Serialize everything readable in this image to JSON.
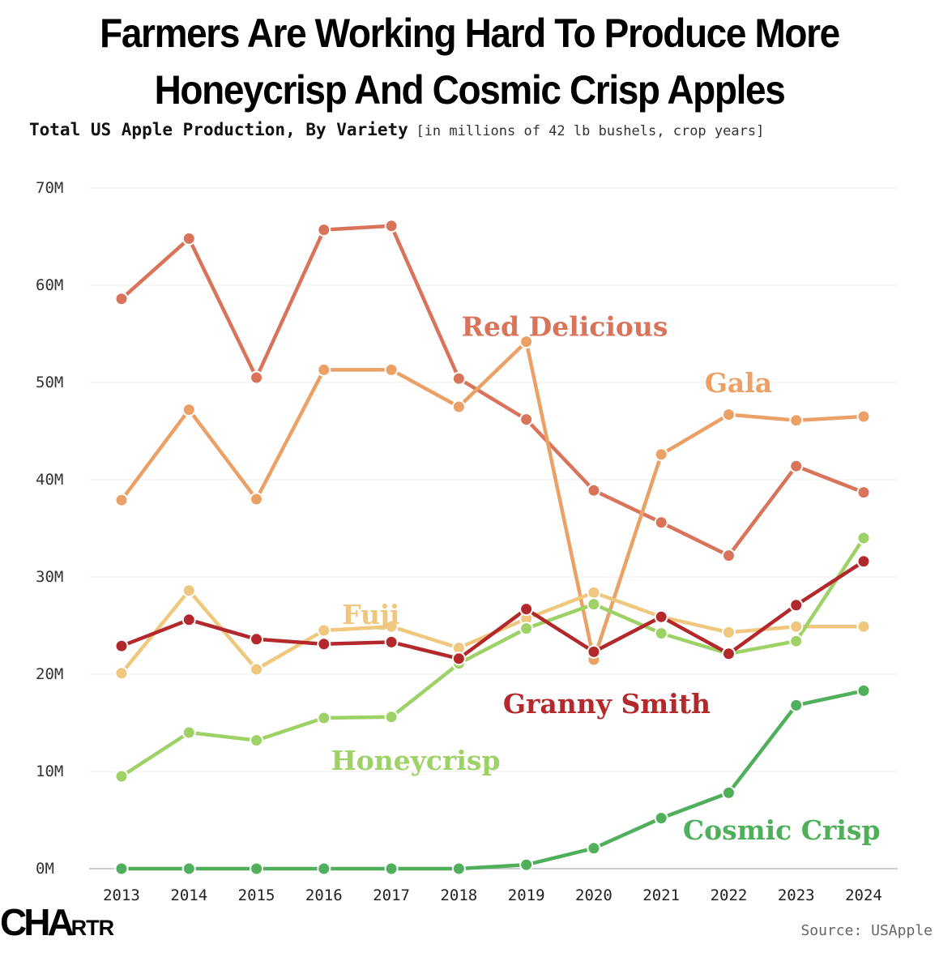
{
  "header": {
    "title_line1": "Farmers Are Working Hard To Produce More",
    "title_line2": "Honeycrisp And Cosmic Crisp Apples",
    "subtitle": "Total US Apple Production, By Variety",
    "unit_note": "[in millions of 42 lb bushels, crop years]"
  },
  "footer": {
    "logo_main": "CHA",
    "logo_suffix": "RTR",
    "source": "Source: USApple"
  },
  "chart_data": {
    "type": "line",
    "title": "Total US Apple Production, By Variety",
    "xlabel": "",
    "ylabel": "",
    "ylim": [
      0,
      70
    ],
    "grid": true,
    "legend": "direct labels",
    "y_ticks": [
      0,
      10,
      20,
      30,
      40,
      50,
      60,
      70
    ],
    "y_tick_labels": [
      "0M",
      "10M",
      "20M",
      "30M",
      "40M",
      "50M",
      "60M",
      "70M"
    ],
    "x": [
      "2013",
      "2014",
      "2015",
      "2016",
      "2017",
      "2018",
      "2019",
      "2020",
      "2021",
      "2022",
      "2023",
      "2024"
    ],
    "series": [
      {
        "name": "Red Delicious",
        "label": "Red Delicious",
        "color": "#D9735A",
        "values": [
          58.6,
          64.8,
          50.5,
          65.7,
          66.1,
          50.4,
          46.2,
          38.9,
          35.6,
          32.2,
          41.4,
          38.7
        ]
      },
      {
        "name": "Gala",
        "label": "Gala",
        "color": "#EBA166",
        "values": [
          37.9,
          47.2,
          38.0,
          51.3,
          51.3,
          47.5,
          54.2,
          21.5,
          42.6,
          46.7,
          46.1,
          46.5
        ]
      },
      {
        "name": "Fuji",
        "label": "Fuji",
        "color": "#EFC77E",
        "values": [
          20.1,
          28.6,
          20.5,
          24.5,
          24.9,
          22.7,
          25.7,
          28.4,
          25.9,
          24.3,
          24.9,
          24.9
        ]
      },
      {
        "name": "Honeycrisp",
        "label": "Honeycrisp",
        "color": "#9ED266",
        "values": [
          9.5,
          14.0,
          13.2,
          15.5,
          15.6,
          21.1,
          24.7,
          27.2,
          24.2,
          22.1,
          23.4,
          34.0
        ]
      },
      {
        "name": "Granny Smith",
        "label": "Granny Smith",
        "color": "#B3282B",
        "values": [
          22.9,
          25.6,
          23.6,
          23.1,
          23.3,
          21.6,
          26.7,
          22.3,
          25.9,
          22.1,
          27.1,
          31.6
        ]
      },
      {
        "name": "Cosmic Crisp",
        "label": "Cosmic Crisp",
        "color": "#4FAF5A",
        "values": [
          0,
          0,
          0,
          0,
          0,
          0,
          0.4,
          2.1,
          5.2,
          7.8,
          16.8,
          18.3
        ]
      }
    ]
  }
}
